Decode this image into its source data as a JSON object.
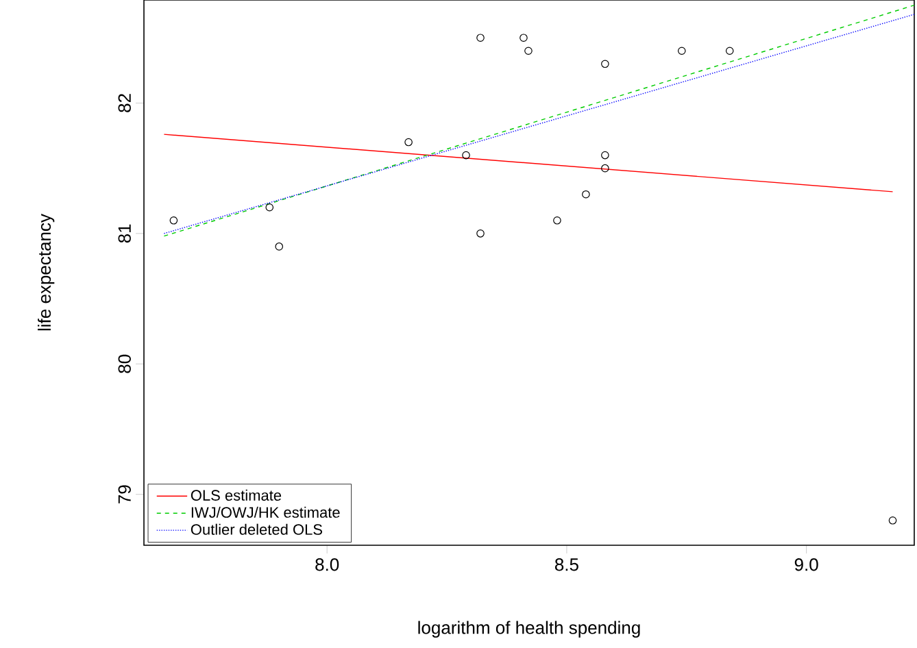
{
  "chart_data": {
    "type": "scatter",
    "xlabel": "logarithm of health spending",
    "ylabel": "life expectancy",
    "xlim": [
      7.618,
      9.225
    ],
    "ylim": [
      78.61,
      82.79
    ],
    "xticks": [
      {
        "value": 8,
        "label": "8.0"
      },
      {
        "value": 8.5,
        "label": "8.5"
      },
      {
        "value": 9,
        "label": "9.0"
      }
    ],
    "yticks": [
      79,
      80,
      81,
      82
    ],
    "grid": false,
    "legend": "bottom left",
    "series": [
      {
        "color": "#000000",
        "marker": "circle",
        "x": [
          7.68,
          7.88,
          7.9,
          8.17,
          8.29,
          8.32,
          8.32,
          8.41,
          8.42,
          8.48,
          8.54,
          8.58,
          8.58,
          8.58,
          8.74,
          8.84,
          9.18
        ],
        "values": [
          81.1,
          81.2,
          80.9,
          81.7,
          81.6,
          82.5,
          81.0,
          82.5,
          82.4,
          81.1,
          81.3,
          82.3,
          81.6,
          81.5,
          82.4,
          82.4,
          78.8
        ]
      },
      {
        "type": "line",
        "name": "OLS estimate",
        "color": "#ff0000",
        "line_style": "solid",
        "x": [
          7.66,
          9.18
        ],
        "values": [
          81.76,
          81.32
        ]
      },
      {
        "type": "line",
        "name": "IWJ/OWJ/HK estimate",
        "color": "#00cc00",
        "line_style": "dashed",
        "x": [
          7.66,
          9.225
        ],
        "values": [
          80.98,
          82.75
        ]
      },
      {
        "type": "line",
        "name": "Outlier deleted OLS",
        "color": "#0000ff",
        "line_style": "dotted",
        "x": [
          7.66,
          9.225
        ],
        "values": [
          81.0,
          82.68
        ]
      }
    ]
  }
}
